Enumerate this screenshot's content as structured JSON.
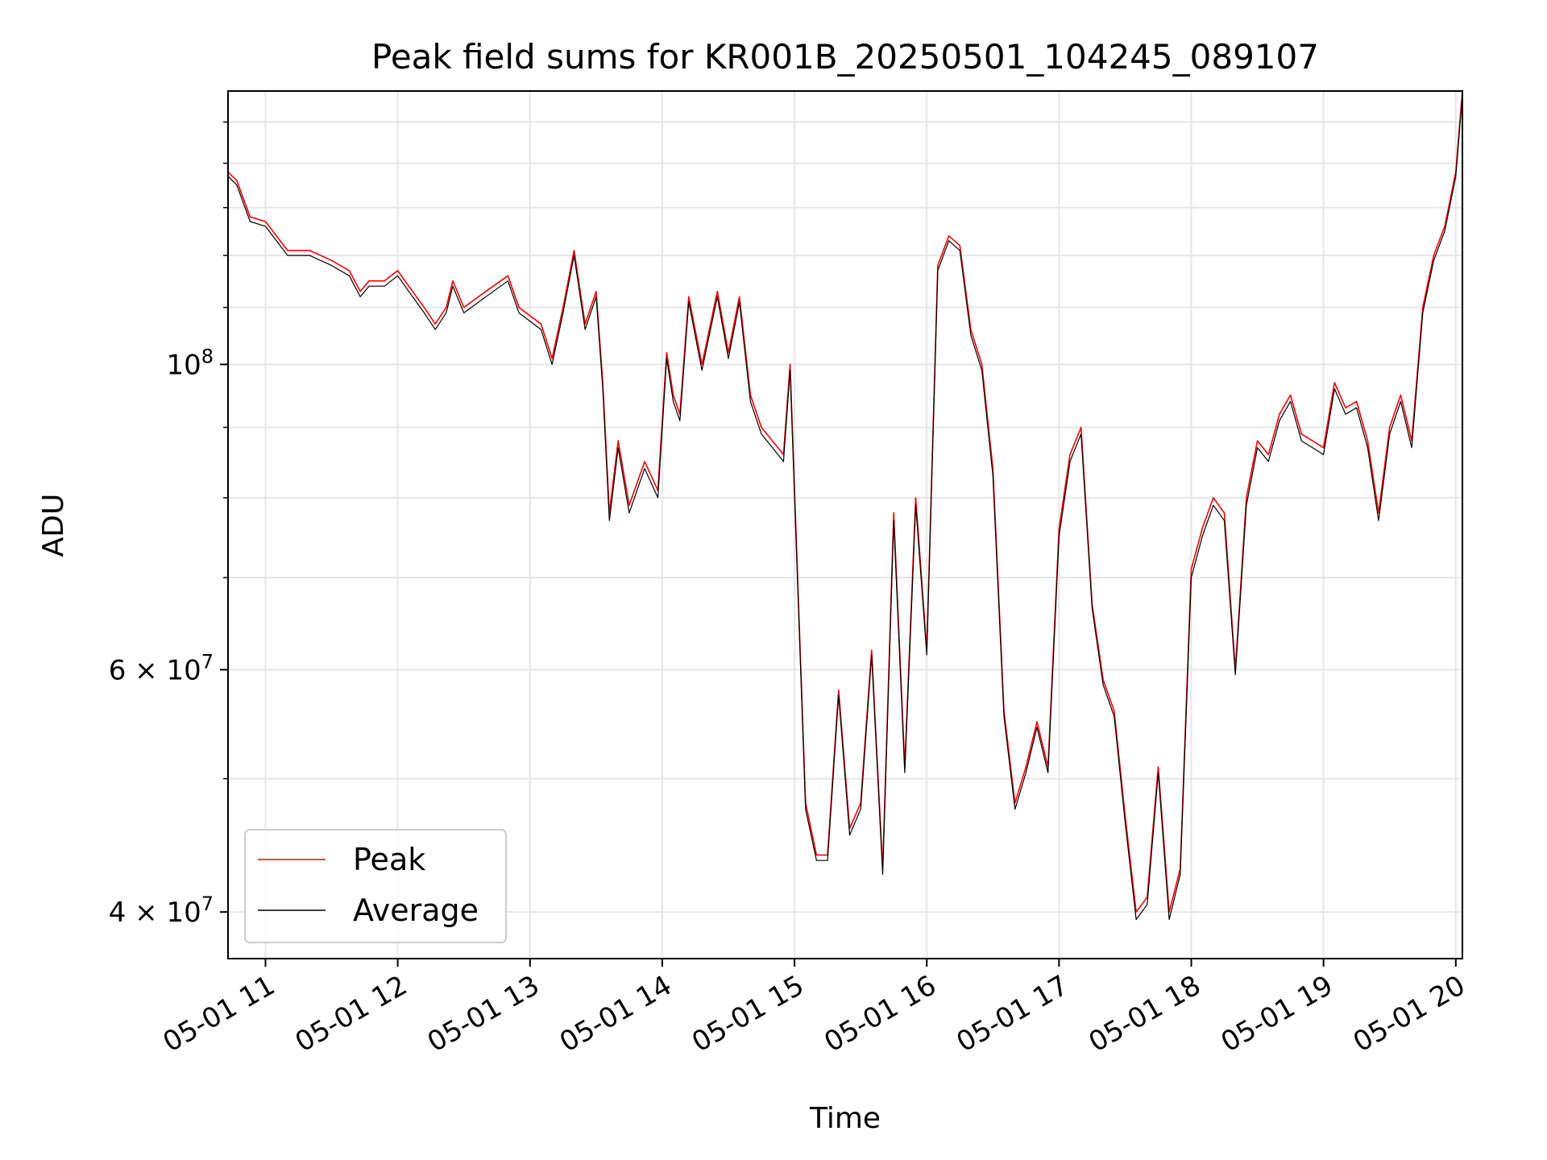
{
  "chart_data": {
    "type": "line",
    "title": "Peak field sums for KR001B_20250501_104245_089107",
    "xlabel": "Time",
    "ylabel": "ADU",
    "y_scale": "log",
    "grid": true,
    "legend_position": "lower-left",
    "xlim": [
      "2025-05-01 10:43",
      "2025-05-01 20:03"
    ],
    "ylim": [
      37000000,
      158000000
    ],
    "x_ticks": [
      "05-01 11",
      "05-01 12",
      "05-01 13",
      "05-01 14",
      "05-01 15",
      "05-01 16",
      "05-01 17",
      "05-01 18",
      "05-01 19",
      "05-01 20"
    ],
    "y_ticks": [
      {
        "value": 100000000,
        "base": "10",
        "exp": "8"
      },
      {
        "value": 60000000,
        "base": "6 × 10",
        "exp": "7"
      },
      {
        "value": 40000000,
        "base": "4 × 10",
        "exp": "7"
      }
    ],
    "x": [
      "2025-05-01 10:43",
      "2025-05-01 10:47",
      "2025-05-01 10:53",
      "2025-05-01 11:00",
      "2025-05-01 11:10",
      "2025-05-01 11:20",
      "2025-05-01 11:30",
      "2025-05-01 11:38",
      "2025-05-01 11:43",
      "2025-05-01 11:47",
      "2025-05-01 11:54",
      "2025-05-01 12:00",
      "2025-05-01 12:05",
      "2025-05-01 12:12",
      "2025-05-01 12:17",
      "2025-05-01 12:22",
      "2025-05-01 12:25",
      "2025-05-01 12:30",
      "2025-05-01 12:40",
      "2025-05-01 12:50",
      "2025-05-01 12:55",
      "2025-05-01 13:05",
      "2025-05-01 13:10",
      "2025-05-01 13:15",
      "2025-05-01 13:20",
      "2025-05-01 13:25",
      "2025-05-01 13:30",
      "2025-05-01 13:33",
      "2025-05-01 13:36",
      "2025-05-01 13:40",
      "2025-05-01 13:45",
      "2025-05-01 13:52",
      "2025-05-01 13:58",
      "2025-05-01 14:02",
      "2025-05-01 14:05",
      "2025-05-01 14:08",
      "2025-05-01 14:12",
      "2025-05-01 14:18",
      "2025-05-01 14:25",
      "2025-05-01 14:30",
      "2025-05-01 14:35",
      "2025-05-01 14:40",
      "2025-05-01 14:45",
      "2025-05-01 14:50",
      "2025-05-01 14:55",
      "2025-05-01 14:58",
      "2025-05-01 15:05",
      "2025-05-01 15:10",
      "2025-05-01 15:15",
      "2025-05-01 15:20",
      "2025-05-01 15:25",
      "2025-05-01 15:30",
      "2025-05-01 15:35",
      "2025-05-01 15:40",
      "2025-05-01 15:45",
      "2025-05-01 15:50",
      "2025-05-01 15:55",
      "2025-05-01 16:00",
      "2025-05-01 16:05",
      "2025-05-01 16:10",
      "2025-05-01 16:15",
      "2025-05-01 16:20",
      "2025-05-01 16:25",
      "2025-05-01 16:30",
      "2025-05-01 16:35",
      "2025-05-01 16:40",
      "2025-05-01 16:45",
      "2025-05-01 16:50",
      "2025-05-01 16:55",
      "2025-05-01 17:00",
      "2025-05-01 17:05",
      "2025-05-01 17:10",
      "2025-05-01 17:15",
      "2025-05-01 17:20",
      "2025-05-01 17:25",
      "2025-05-01 17:30",
      "2025-05-01 17:35",
      "2025-05-01 17:40",
      "2025-05-01 17:45",
      "2025-05-01 17:50",
      "2025-05-01 17:55",
      "2025-05-01 18:00",
      "2025-05-01 18:05",
      "2025-05-01 18:10",
      "2025-05-01 18:15",
      "2025-05-01 18:20",
      "2025-05-01 18:25",
      "2025-05-01 18:30",
      "2025-05-01 18:35",
      "2025-05-01 18:40",
      "2025-05-01 18:45",
      "2025-05-01 18:50",
      "2025-05-01 18:55",
      "2025-05-01 19:00",
      "2025-05-01 19:05",
      "2025-05-01 19:10",
      "2025-05-01 19:15",
      "2025-05-01 19:20",
      "2025-05-01 19:25",
      "2025-05-01 19:30",
      "2025-05-01 19:35",
      "2025-05-01 19:40",
      "2025-05-01 19:45",
      "2025-05-01 19:50",
      "2025-05-01 19:55",
      "2025-05-01 20:00",
      "2025-05-01 20:03"
    ],
    "series": [
      {
        "name": "Peak",
        "color": "#ff0000",
        "values": [
          138000000,
          136000000,
          128000000,
          127000000,
          121000000,
          121000000,
          119000000,
          117000000,
          113000000,
          115000000,
          115000000,
          117000000,
          114000000,
          110000000,
          107000000,
          110000000,
          115000000,
          110000000,
          113000000,
          116000000,
          110000000,
          107000000,
          101000000,
          110000000,
          121000000,
          107000000,
          113000000,
          97000000,
          78000000,
          88000000,
          79000000,
          85000000,
          81000000,
          102000000,
          95000000,
          92000000,
          112000000,
          100000000,
          113000000,
          102000000,
          112000000,
          95000000,
          90000000,
          88000000,
          86000000,
          100000000,
          48000000,
          44000000,
          44000000,
          58000000,
          46000000,
          48000000,
          62000000,
          43000000,
          78000000,
          51000000,
          80000000,
          62000000,
          118000000,
          124000000,
          122000000,
          106000000,
          100000000,
          84000000,
          56000000,
          48000000,
          51000000,
          55000000,
          51000000,
          76000000,
          86000000,
          90000000,
          67000000,
          59000000,
          56000000,
          47000000,
          40000000,
          41000000,
          51000000,
          40000000,
          43000000,
          71000000,
          76000000,
          80000000,
          78000000,
          60000000,
          80000000,
          88000000,
          86000000,
          92000000,
          95000000,
          89000000,
          88000000,
          87000000,
          97000000,
          93000000,
          94000000,
          88000000,
          78000000,
          90000000,
          95000000,
          88000000,
          110000000,
          120000000,
          126000000,
          138000000,
          158000000
        ]
      },
      {
        "name": "Average",
        "color": "#000000",
        "values": [
          137000000,
          135000000,
          127000000,
          126000000,
          120000000,
          120000000,
          118000000,
          116000000,
          112000000,
          114000000,
          114000000,
          116000000,
          113000000,
          109000000,
          106000000,
          109000000,
          114000000,
          109000000,
          112000000,
          115000000,
          109000000,
          106000000,
          100000000,
          109000000,
          120000000,
          106000000,
          112000000,
          96000000,
          77000000,
          87000000,
          78000000,
          84000000,
          80000000,
          101000000,
          94000000,
          91000000,
          111000000,
          99000000,
          112000000,
          101000000,
          111000000,
          94000000,
          89000000,
          87000000,
          85000000,
          99000000,
          47500000,
          43600000,
          43600000,
          57500000,
          45500000,
          47500000,
          61500000,
          42600000,
          77000000,
          50500000,
          79000000,
          61500000,
          117000000,
          123000000,
          121000000,
          105000000,
          99000000,
          83000000,
          55500000,
          47500000,
          50500000,
          54500000,
          50500000,
          75000000,
          85000000,
          89000000,
          66500000,
          58500000,
          55500000,
          46500000,
          39500000,
          40500000,
          50500000,
          39500000,
          42600000,
          70000000,
          75000000,
          79000000,
          77000000,
          59500000,
          79000000,
          87000000,
          85000000,
          91000000,
          94000000,
          88000000,
          87000000,
          86000000,
          96000000,
          92000000,
          93000000,
          87000000,
          77000000,
          89000000,
          94000000,
          87000000,
          109000000,
          119000000,
          125000000,
          137000000,
          157000000
        ]
      }
    ]
  }
}
